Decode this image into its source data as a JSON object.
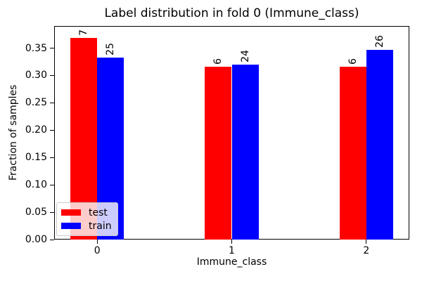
{
  "chart_data": {
    "type": "bar",
    "title": "Label distribution in fold 0 (Immune_class)",
    "xlabel": "Immune_class",
    "ylabel": "Fraction of samples",
    "categories": [
      "0",
      "1",
      "2"
    ],
    "series": [
      {
        "name": "test",
        "color": "#ff0000",
        "values": [
          0.3684,
          0.3158,
          0.3158
        ],
        "bar_labels": [
          "7",
          "6",
          "6"
        ]
      },
      {
        "name": "train",
        "color": "#0000ff",
        "values": [
          0.3333,
          0.32,
          0.3467
        ],
        "bar_labels": [
          "25",
          "24",
          "26"
        ]
      }
    ],
    "bar_width": 0.2,
    "bar_label_rotation": 90,
    "yticks": [
      "0.00",
      "0.05",
      "0.10",
      "0.15",
      "0.20",
      "0.25",
      "0.30",
      "0.35"
    ],
    "ylim": [
      0,
      0.3905
    ],
    "xlim": [
      -0.32,
      2.32
    ],
    "grid": false,
    "legend": {
      "position": "lower left"
    }
  }
}
